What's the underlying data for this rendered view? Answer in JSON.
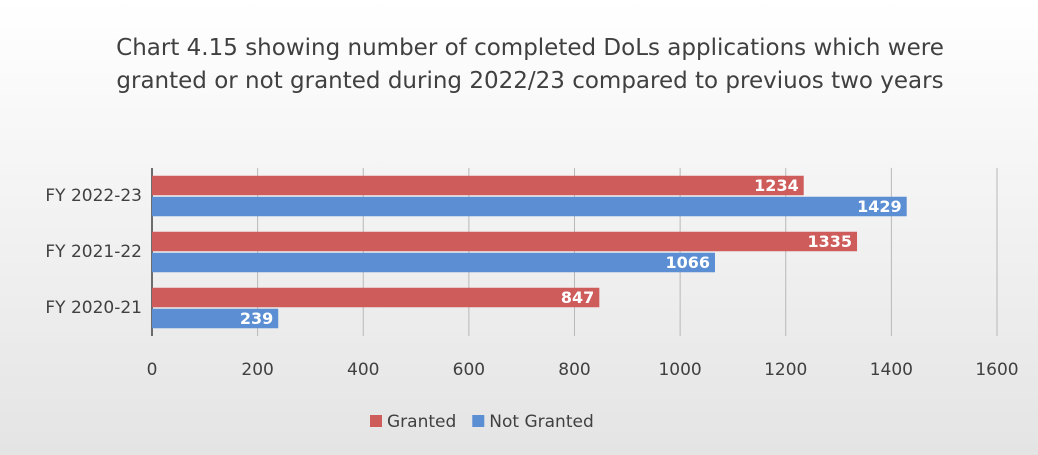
{
  "chart_data": {
    "type": "barh",
    "title": "Chart 4.15 showing number of completed DoLs applications which were granted or not granted during 2022/23 compared to previuos two years",
    "categories": [
      "FY 2022-23",
      "FY 2021-22",
      "FY 2020-21"
    ],
    "series": [
      {
        "name": "Granted",
        "color": "#cd5c5b",
        "values": [
          1234,
          1335,
          847
        ]
      },
      {
        "name": "Not Granted",
        "color": "#5b8ed3",
        "values": [
          1429,
          1066,
          239
        ]
      }
    ],
    "xlim": [
      0,
      1600
    ],
    "xticks": [
      0,
      200,
      400,
      600,
      800,
      1000,
      1200,
      1400,
      1600
    ],
    "grid": true,
    "legend": "bottom"
  }
}
